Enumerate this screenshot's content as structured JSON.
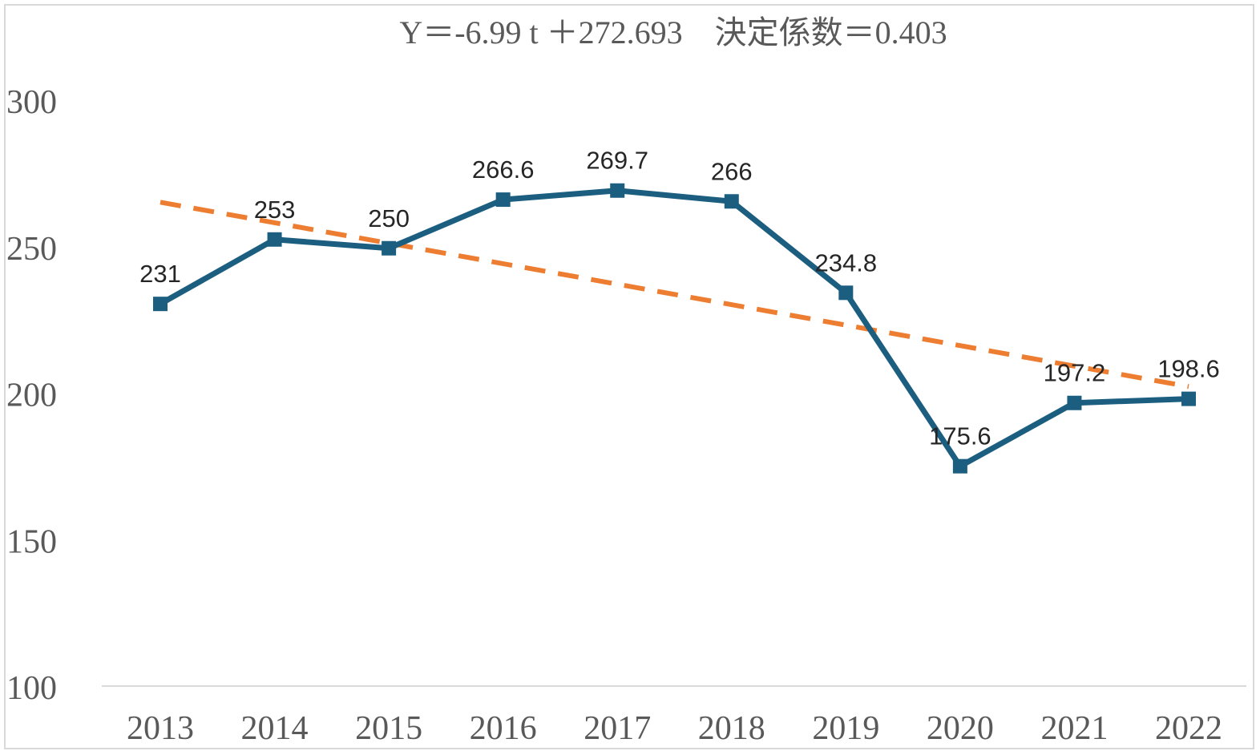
{
  "chart_data": {
    "type": "line",
    "title": "Y＝-6.99 t ＋272.693　決定係数＝0.403",
    "xlabel": "",
    "ylabel": "",
    "categories": [
      "2013",
      "2014",
      "2015",
      "2016",
      "2017",
      "2018",
      "2019",
      "2020",
      "2021",
      "2022"
    ],
    "series": [
      {
        "values": [
          231,
          253,
          250,
          266.6,
          269.7,
          266,
          234.8,
          175.6,
          197.2,
          198.6
        ],
        "color": "#1b5e80",
        "marker": "square",
        "data_labels": true
      },
      {
        "type": "linear-trendline",
        "slope": -6.99,
        "intercept": 272.693,
        "color": "#ed7d31",
        "style": "dashed"
      }
    ],
    "ylim": [
      100,
      300
    ],
    "yticks": [
      100,
      150,
      200,
      250,
      300
    ],
    "grid": false
  }
}
